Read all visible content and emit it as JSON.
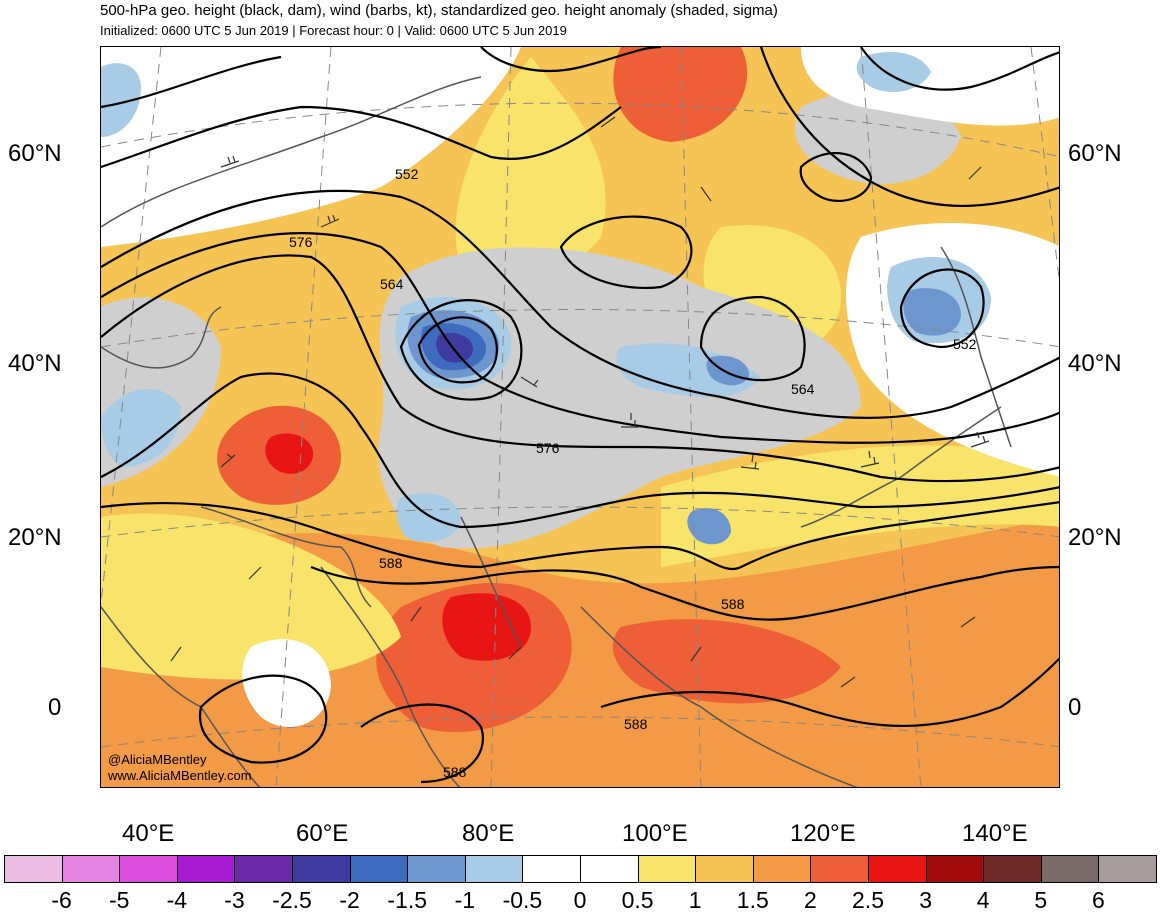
{
  "title": "500-hPa geo. height (black, dam), wind (barbs, kt), standardized geo. height anomaly (shaded, sigma)",
  "subtitle": "Initialized: 0600 UTC 5 Jun 2019 | Forecast hour: 0 | Valid: 0600 UTC 5 Jun 2019",
  "lat_labels": [
    "60°N",
    "40°N",
    "20°N",
    "0"
  ],
  "lon_labels": [
    "40°E",
    "60°E",
    "80°E",
    "100°E",
    "120°E",
    "140°E"
  ],
  "contour_labels": [
    "552",
    "576",
    "564",
    "564",
    "576",
    "588",
    "588",
    "588",
    "588",
    "552"
  ],
  "credit": [
    "@AliciaMBentley",
    "www.AliciaMBentley.com"
  ],
  "colorbar": {
    "colors": [
      "#ebbde6",
      "#e783e2",
      "#db4ddb",
      "#a61ad1",
      "#6a2aa8",
      "#3e3a9e",
      "#3e6bbd",
      "#6d96cf",
      "#a8cbe6",
      "#ffffff",
      "#ffffff",
      "#f8e46a",
      "#f6c454",
      "#f29a45",
      "#ee5f38",
      "#e81515",
      "#a10b0b",
      "#6e2a27",
      "#7a6a6a",
      "#a89d9d"
    ],
    "ticks": [
      "-6",
      "-5",
      "-4",
      "-3",
      "-2.5",
      "-2",
      "-1.5",
      "-1",
      "-0.5",
      "0",
      "0.5",
      "1",
      "1.5",
      "2",
      "2.5",
      "3",
      "4",
      "5",
      "6"
    ]
  },
  "colors": {
    "background": "#f6c454",
    "contour": "#000000",
    "coastline": "#555555",
    "grid": "#888888",
    "neutral_gray": "#cfcfcf"
  }
}
